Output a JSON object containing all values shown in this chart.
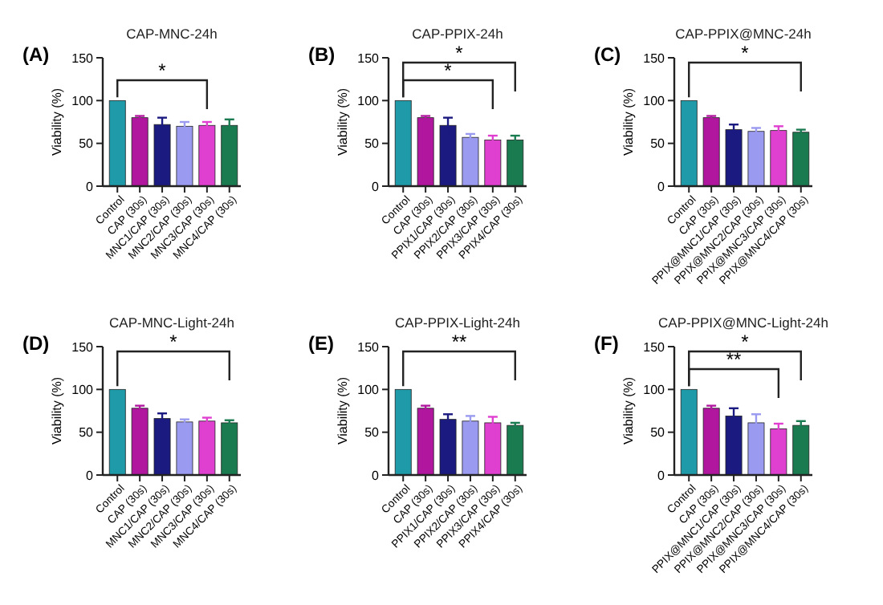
{
  "chart_data": [
    {
      "type": "bar",
      "title": "CAP-MNC-24h",
      "ylabel": "Viability (%)",
      "categories": [
        "Control",
        "CAP (30s)",
        "MNC1/CAP (30s)",
        "MNC2/CAP (30s)",
        "MNC3/CAP (30s)",
        "MNC4/CAP (30s)"
      ],
      "values": [
        100,
        80,
        72,
        70,
        71,
        71
      ],
      "errors": [
        null,
        2,
        8,
        5,
        4,
        7
      ],
      "colors": [
        "#1f9aa8",
        "#b0169e",
        "#1a1a80",
        "#9a9af0",
        "#e040d0",
        "#1a7a50"
      ],
      "ylim": [
        0,
        150
      ],
      "yticks": [
        0,
        50,
        100,
        150
      ],
      "annotations": [
        "(A)",
        "*"
      ]
    },
    {
      "type": "bar",
      "title": "CAP-PPIX-24h",
      "ylabel": "Viability (%)",
      "categories": [
        "Control",
        "CAP (30s)",
        "PPIX1/CAP (30s)",
        "PPIX2/CAP (30s)",
        "PPIX3/CAP (30s)",
        "PPIX4/CAP (30s)"
      ],
      "values": [
        100,
        80,
        71,
        57,
        54,
        54
      ],
      "errors": [
        null,
        2,
        9,
        4,
        5,
        5
      ],
      "colors": [
        "#1f9aa8",
        "#b0169e",
        "#1a1a80",
        "#9a9af0",
        "#e040d0",
        "#1a7a50"
      ],
      "ylim": [
        0,
        150
      ],
      "yticks": [
        0,
        50,
        100,
        150
      ],
      "annotations": [
        "(B)",
        "*",
        "*"
      ]
    },
    {
      "type": "bar",
      "title": "CAP-PPIX@MNC-24h",
      "ylabel": "Viability (%)",
      "categories": [
        "Control",
        "CAP (30s)",
        "PPIX@MNC1/CAP (30s)",
        "PPIX@MNC2/CAP (30s)",
        "PPIX@MNC3/CAP (30s)",
        "PPIX@MNC4/CAP (30s)"
      ],
      "values": [
        100,
        80,
        66,
        64,
        65,
        63
      ],
      "errors": [
        null,
        2,
        6,
        4,
        5,
        3
      ],
      "colors": [
        "#1f9aa8",
        "#b0169e",
        "#1a1a80",
        "#9a9af0",
        "#e040d0",
        "#1a7a50"
      ],
      "ylim": [
        0,
        150
      ],
      "yticks": [
        0,
        50,
        100,
        150
      ],
      "annotations": [
        "(C)",
        "*"
      ]
    },
    {
      "type": "bar",
      "title": "CAP-MNC-Light-24h",
      "ylabel": "Viability (%)",
      "categories": [
        "Control",
        "CAP (30s)",
        "MNC1/CAP (30s)",
        "MNC2/CAP (30s)",
        "MNC3/CAP (30s)",
        "MNC4/CAP (30s)"
      ],
      "values": [
        100,
        78,
        66,
        62,
        63,
        61
      ],
      "errors": [
        null,
        3,
        6,
        3,
        4,
        3
      ],
      "colors": [
        "#1f9aa8",
        "#b0169e",
        "#1a1a80",
        "#9a9af0",
        "#e040d0",
        "#1a7a50"
      ],
      "ylim": [
        0,
        150
      ],
      "yticks": [
        0,
        50,
        100,
        150
      ],
      "annotations": [
        "(D)",
        "*"
      ]
    },
    {
      "type": "bar",
      "title": "CAP-PPIX-Light-24h",
      "ylabel": "Viability (%)",
      "categories": [
        "Control",
        "CAP (30s)",
        "PPIX1/CAP (30s)",
        "PPIX2/CAP (30s)",
        "PPIX3/CAP (30s)",
        "PPIX4/CAP (30s)"
      ],
      "values": [
        100,
        78,
        65,
        63,
        61,
        58
      ],
      "errors": [
        null,
        3,
        6,
        6,
        7,
        3
      ],
      "colors": [
        "#1f9aa8",
        "#b0169e",
        "#1a1a80",
        "#9a9af0",
        "#e040d0",
        "#1a7a50"
      ],
      "ylim": [
        0,
        150
      ],
      "yticks": [
        0,
        50,
        100,
        150
      ],
      "annotations": [
        "(E)",
        "**"
      ]
    },
    {
      "type": "bar",
      "title": "CAP-PPIX@MNC-Light-24h",
      "ylabel": "Viability (%)",
      "categories": [
        "Control",
        "CAP (30s)",
        "PPIX@MNC1/CAP (30s)",
        "PPIX@MNC2/CAP (30s)",
        "PPIX@MNC3/CAP (30s)",
        "PPIX@MNC4/CAP (30s)"
      ],
      "values": [
        100,
        78,
        69,
        61,
        54,
        58
      ],
      "errors": [
        null,
        3,
        9,
        10,
        6,
        5
      ],
      "colors": [
        "#1f9aa8",
        "#b0169e",
        "#1a1a80",
        "#9a9af0",
        "#e040d0",
        "#1a7a50"
      ],
      "ylim": [
        0,
        150
      ],
      "yticks": [
        0,
        50,
        100,
        150
      ],
      "annotations": [
        "(F)",
        "*",
        "**"
      ]
    }
  ]
}
